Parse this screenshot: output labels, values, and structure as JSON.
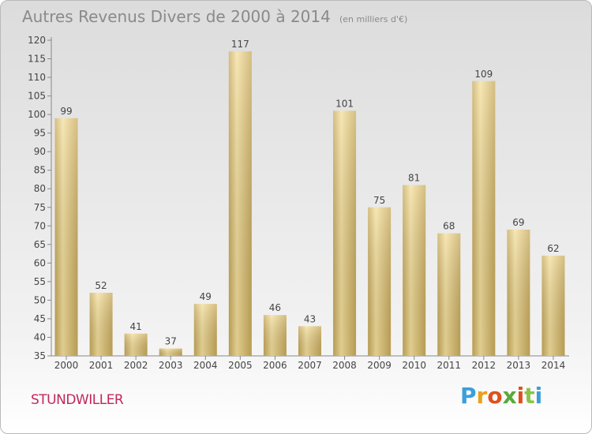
{
  "header": {
    "title": "Autres Revenus Divers de 2000 à 2014",
    "subtitle": "(en milliers d'€)"
  },
  "footer": {
    "town": "STUNDWILLER",
    "logo_text": "Proxiti",
    "logo_colors": [
      "#3a9fd8",
      "#e8a21a",
      "#e04f1c",
      "#5aa93a",
      "#e04f1c",
      "#8bc34a",
      "#3a9fd8"
    ]
  },
  "colors": {
    "bar_light": "#f4df9c",
    "bar_dark": "#c7a95a",
    "axis": "#888888",
    "grid_text": "#444444"
  },
  "chart_data": {
    "type": "bar",
    "title": "Autres Revenus Divers de 2000 à 2014",
    "subtitle": "(en milliers d'€)",
    "categories": [
      "2000",
      "2001",
      "2002",
      "2003",
      "2004",
      "2005",
      "2006",
      "2007",
      "2008",
      "2009",
      "2010",
      "2011",
      "2012",
      "2013",
      "2014"
    ],
    "values": [
      99,
      52,
      41,
      37,
      49,
      117,
      46,
      43,
      101,
      75,
      81,
      68,
      109,
      69,
      62
    ],
    "ylim": [
      35,
      120
    ],
    "yticks": [
      35,
      40,
      45,
      50,
      55,
      60,
      65,
      70,
      75,
      80,
      85,
      90,
      95,
      100,
      105,
      110,
      115,
      120
    ],
    "xlabel": "",
    "ylabel": "",
    "grid": false,
    "data_labels": true
  }
}
